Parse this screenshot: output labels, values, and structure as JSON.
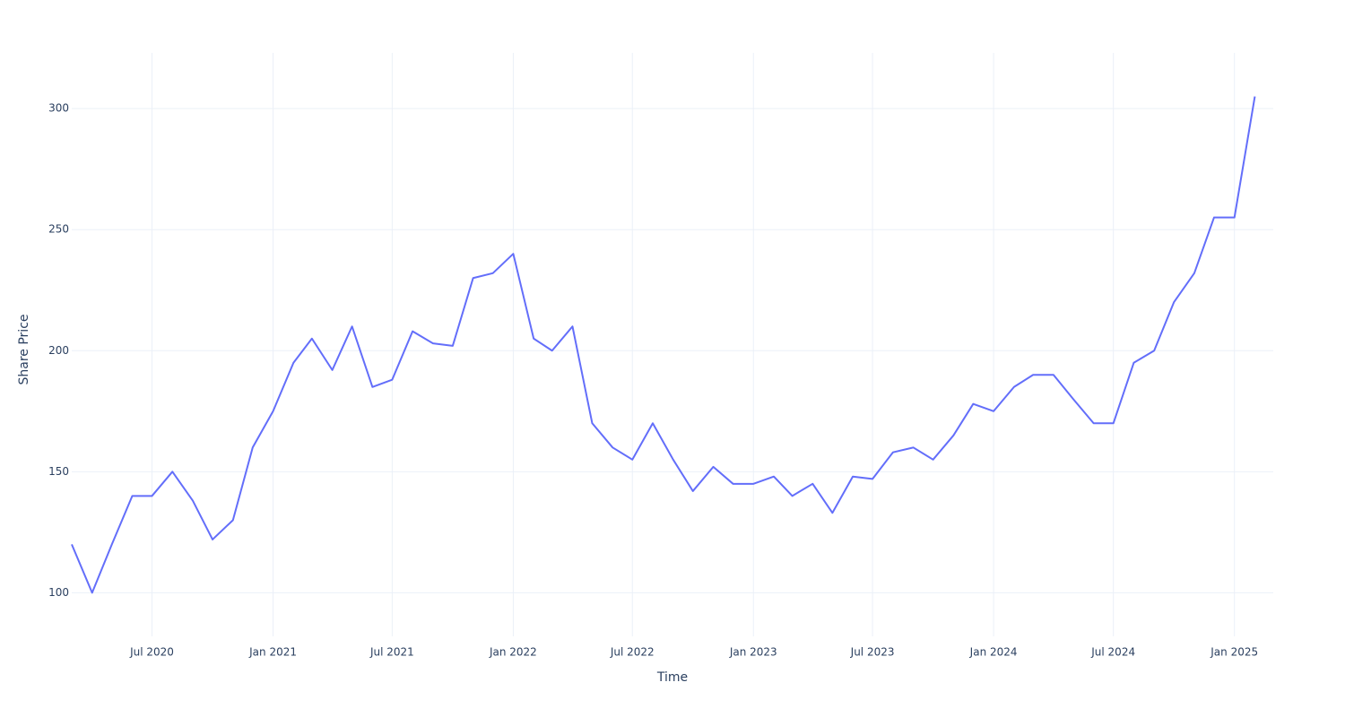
{
  "chart_data": {
    "type": "line",
    "x_label": "Time",
    "y_label": "Share Price",
    "x": [
      "2020-03",
      "2020-04",
      "2020-05",
      "2020-06",
      "2020-07",
      "2020-08",
      "2020-09",
      "2020-10",
      "2020-11",
      "2020-12",
      "2021-01",
      "2021-02",
      "2021-03",
      "2021-04",
      "2021-05",
      "2021-06",
      "2021-07",
      "2021-08",
      "2021-09",
      "2021-10",
      "2021-11",
      "2021-12",
      "2022-01",
      "2022-02",
      "2022-03",
      "2022-04",
      "2022-05",
      "2022-06",
      "2022-07",
      "2022-08",
      "2022-09",
      "2022-10",
      "2022-11",
      "2022-12",
      "2023-01",
      "2023-02",
      "2023-03",
      "2023-04",
      "2023-05",
      "2023-06",
      "2023-07",
      "2023-08",
      "2023-09",
      "2023-10",
      "2023-11",
      "2023-12",
      "2024-01",
      "2024-02",
      "2024-03",
      "2024-04",
      "2024-05",
      "2024-06",
      "2024-07",
      "2024-08",
      "2024-09",
      "2024-10",
      "2024-11",
      "2024-12",
      "2025-01",
      "2025-02"
    ],
    "series": [
      {
        "color": "#636efa",
        "values": [
          120,
          100,
          120,
          140,
          140,
          150,
          138,
          122,
          130,
          160,
          175,
          195,
          205,
          192,
          210,
          185,
          188,
          208,
          203,
          202,
          230,
          232,
          240,
          205,
          200,
          210,
          170,
          160,
          155,
          170,
          155,
          142,
          152,
          145,
          145,
          148,
          140,
          145,
          133,
          148,
          147,
          158,
          160,
          155,
          165,
          178,
          175,
          185,
          190,
          190,
          180,
          170,
          170,
          195,
          200,
          220,
          232,
          255,
          255,
          305
        ]
      }
    ],
    "xlim": [
      "2020-03",
      "2025-03"
    ],
    "xticks": [
      {
        "value": "2020-07",
        "label": "Jul 2020"
      },
      {
        "value": "2021-01",
        "label": "Jan 2021"
      },
      {
        "value": "2021-07",
        "label": "Jul 2021"
      },
      {
        "value": "2022-01",
        "label": "Jan 2022"
      },
      {
        "value": "2022-07",
        "label": "Jul 2022"
      },
      {
        "value": "2023-01",
        "label": "Jan 2023"
      },
      {
        "value": "2023-07",
        "label": "Jul 2023"
      },
      {
        "value": "2024-01",
        "label": "Jan 2024"
      },
      {
        "value": "2024-07",
        "label": "Jul 2024"
      },
      {
        "value": "2025-01",
        "label": "Jan 2025"
      }
    ],
    "ylim": [
      82,
      323
    ],
    "yticks": [
      100,
      150,
      200,
      250,
      300
    ],
    "grid": true
  }
}
